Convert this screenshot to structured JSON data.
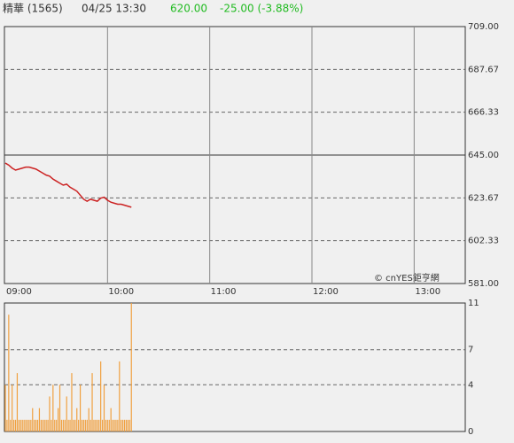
{
  "header": {
    "name": "精華 (1565)",
    "datetime": "04/25 13:30",
    "price": "620.00",
    "change": "-25.00 (-3.88%)"
  },
  "chart_data": [
    {
      "type": "line",
      "watermark": "© cnYES鉅亨網",
      "prev_close": 645,
      "x": [
        "09:00",
        "09:02",
        "09:04",
        "09:06",
        "09:08",
        "09:10",
        "09:12",
        "09:14",
        "09:16",
        "09:18",
        "09:20",
        "09:22",
        "09:24",
        "09:26",
        "09:28",
        "09:30",
        "09:32",
        "09:34",
        "09:36",
        "09:38",
        "09:40",
        "09:42",
        "09:44",
        "09:46",
        "09:48",
        "09:50",
        "09:52",
        "09:54",
        "09:56",
        "09:58",
        "10:00",
        "10:02",
        "10:04",
        "10:06",
        "10:08",
        "10:10",
        "10:12",
        "10:14"
      ],
      "series": [
        {
          "color": "#cc2222",
          "values": [
            641,
            640,
            638.5,
            637.5,
            638,
            638.5,
            639,
            639,
            638.5,
            638,
            637,
            636,
            635,
            634.5,
            633,
            632,
            631,
            630,
            630.5,
            629,
            628,
            627,
            625,
            623,
            622,
            623,
            622.5,
            622,
            623.5,
            624,
            622.5,
            621.5,
            621,
            620.5,
            620.5,
            620,
            619.5,
            619
          ]
        }
      ],
      "xlim": [
        "09:00",
        "13:30"
      ],
      "xticks": [
        "09:00",
        "10:00",
        "11:00",
        "12:00",
        "13:00"
      ],
      "ylim": [
        581,
        709
      ],
      "yticks": [
        {
          "value": 581,
          "label": "581.00"
        },
        602.33,
        623.67,
        {
          "value": 645,
          "label": "645.00"
        },
        666.33,
        687.67,
        {
          "value": 709,
          "label": "709.00"
        }
      ],
      "grid": true
    },
    {
      "type": "bar",
      "color": "#f0a040",
      "x": [
        "09:00",
        "09:01",
        "09:02",
        "09:03",
        "09:04",
        "09:05",
        "09:06",
        "09:07",
        "09:08",
        "09:09",
        "09:10",
        "09:11",
        "09:12",
        "09:13",
        "09:14",
        "09:15",
        "09:16",
        "09:17",
        "09:18",
        "09:19",
        "09:20",
        "09:21",
        "09:22",
        "09:23",
        "09:24",
        "09:25",
        "09:26",
        "09:27",
        "09:28",
        "09:29",
        "09:30",
        "09:31",
        "09:32",
        "09:33",
        "09:34",
        "09:35",
        "09:36",
        "09:37",
        "09:38",
        "09:39",
        "09:40",
        "09:41",
        "09:42",
        "09:43",
        "09:44",
        "09:45",
        "09:46",
        "09:47",
        "09:48",
        "09:49",
        "09:50",
        "09:51",
        "09:52",
        "09:53",
        "09:54",
        "09:55",
        "09:56",
        "09:57",
        "09:58",
        "09:59",
        "10:00",
        "10:01",
        "10:02",
        "10:03",
        "10:04",
        "10:05",
        "10:06",
        "10:07",
        "10:08",
        "10:09",
        "10:10",
        "10:11",
        "10:12",
        "10:13",
        "10:14"
      ],
      "values": [
        4,
        1,
        10,
        1,
        4,
        1,
        1,
        5,
        1,
        1,
        1,
        1,
        1,
        1,
        1,
        1,
        2,
        1,
        1,
        1,
        2,
        1,
        1,
        1,
        1,
        1,
        3,
        1,
        4,
        1,
        1,
        2,
        4,
        1,
        1,
        1,
        3,
        1,
        1,
        5,
        1,
        1,
        2,
        1,
        4,
        1,
        1,
        1,
        1,
        2,
        1,
        5,
        1,
        1,
        1,
        1,
        6,
        1,
        4,
        1,
        1,
        1,
        2,
        1,
        1,
        1,
        1,
        6,
        1,
        1,
        1,
        1,
        1,
        1,
        11
      ],
      "xlim": [
        "09:00",
        "13:30"
      ],
      "ylim": [
        0,
        11
      ],
      "yticks": [
        0,
        4,
        7,
        11
      ],
      "grid": true
    }
  ]
}
